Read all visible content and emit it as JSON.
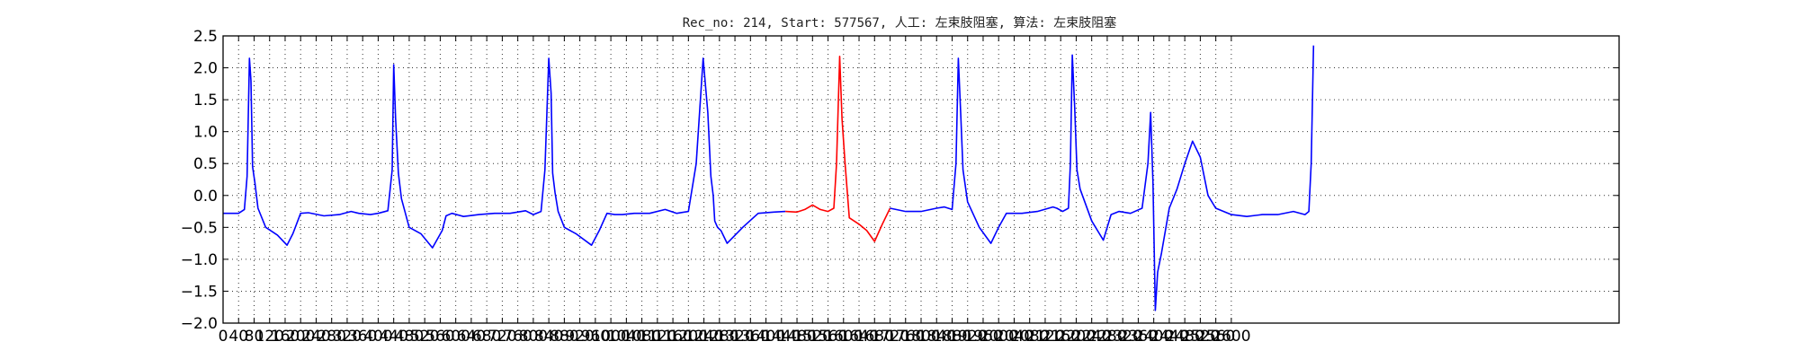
{
  "chart_data": {
    "type": "line",
    "title": "Rec_no: 214, Start: 577567, 人工: 左束肢阻塞, 算法: 左束肢阻塞",
    "xlabel": "",
    "ylabel": "",
    "xlim": [
      0,
      3600
    ],
    "ylim": [
      -2.0,
      2.5
    ],
    "grid": true,
    "ytick_labels": [
      "2.5",
      "2.0",
      "1.5",
      "1.0",
      "0.5",
      "0.0",
      "−0.5",
      "−1.0",
      "−1.5",
      "−2.0"
    ],
    "yticks": [
      2.5,
      2.0,
      1.5,
      1.0,
      0.5,
      0.0,
      -0.5,
      -1.0,
      -1.5,
      -2.0
    ],
    "xticks": [
      0,
      40,
      80,
      120,
      160,
      200,
      240,
      280,
      320,
      360,
      400,
      440,
      480,
      520,
      560,
      600,
      640,
      680,
      720,
      760,
      800,
      840,
      880,
      920,
      960,
      1000,
      1040,
      1080,
      1120,
      1160,
      1200,
      1240,
      1280,
      1320,
      1360,
      1400,
      1440,
      1480,
      1520,
      1560,
      1600,
      1640,
      1680,
      1720,
      1760,
      1800,
      1840,
      1880,
      1920,
      1960,
      2000,
      2040,
      2080,
      2120,
      2160,
      2200,
      2240,
      2280,
      2320,
      2360,
      2400,
      2440,
      2480,
      2520,
      2560,
      2600
    ],
    "colors": {
      "normal": "#0000ff",
      "highlight": "#ff0000"
    },
    "series": [
      {
        "color": "#0000ff",
        "x": [
          0,
          40,
          55,
          62,
          68,
          72,
          76,
          82,
          90,
          110,
          140,
          165,
          180,
          200,
          220,
          260,
          300,
          330,
          350,
          380,
          400,
          425,
          436,
          440,
          445,
          452,
          460,
          480,
          510,
          540,
          565,
          575,
          590,
          620,
          660,
          700,
          740,
          780,
          800,
          820,
          830,
          840,
          846,
          850,
          856,
          864,
          880,
          910,
          950,
          970,
          990,
          1010,
          1030,
          1060,
          1100,
          1140,
          1170,
          1200,
          1220,
          1238,
          1250,
          1258,
          1264,
          1268,
          1275,
          1284,
          1300,
          1340,
          1380,
          1420,
          1450
        ],
        "y": [
          -0.28,
          -0.28,
          -0.22,
          0.3,
          2.15,
          1.8,
          0.45,
          0.2,
          -0.2,
          -0.5,
          -0.62,
          -0.78,
          -0.6,
          -0.28,
          -0.27,
          -0.32,
          -0.3,
          -0.25,
          -0.28,
          -0.3,
          -0.28,
          -0.24,
          0.4,
          2.05,
          1.2,
          0.35,
          -0.05,
          -0.5,
          -0.6,
          -0.82,
          -0.55,
          -0.32,
          -0.28,
          -0.33,
          -0.3,
          -0.28,
          -0.28,
          -0.24,
          -0.3,
          -0.25,
          0.4,
          2.15,
          1.6,
          0.35,
          0.05,
          -0.25,
          -0.5,
          -0.6,
          -0.78,
          -0.55,
          -0.28,
          -0.3,
          -0.3,
          -0.28,
          -0.28,
          -0.22,
          -0.28,
          -0.25,
          0.5,
          2.15,
          1.3,
          0.3,
          0.0,
          -0.4,
          -0.5,
          -0.55,
          -0.75,
          -0.5,
          -0.28,
          -0.26,
          -0.25
        ]
      },
      {
        "color": "#ff0000",
        "x": [
          1450,
          1480,
          1500,
          1520,
          1540,
          1560,
          1575,
          1582,
          1590,
          1596,
          1604,
          1615,
          1640,
          1660,
          1680,
          1700,
          1720
        ],
        "y": [
          -0.25,
          -0.26,
          -0.22,
          -0.15,
          -0.22,
          -0.25,
          -0.2,
          0.5,
          2.18,
          1.2,
          0.5,
          -0.35,
          -0.45,
          -0.55,
          -0.72,
          -0.45,
          -0.2
        ]
      },
      {
        "color": "#0000ff",
        "x": [
          1720,
          1760,
          1800,
          1840,
          1860,
          1880,
          1890,
          1896,
          1902,
          1908,
          1920,
          1950,
          1980,
          2000,
          2020,
          2060,
          2100,
          2140,
          2150,
          2165,
          2180,
          2185,
          2190,
          2196,
          2202,
          2210,
          2240,
          2270,
          2290,
          2310,
          2340,
          2370,
          2385,
          2392,
          2398,
          2404,
          2410,
          2420,
          2440,
          2460,
          2480,
          2500,
          2520,
          2540,
          2560,
          2600,
          2640,
          2680,
          2720,
          2760,
          2790,
          2800,
          2806,
          2812
        ],
        "y": [
          -0.2,
          -0.25,
          -0.25,
          -0.2,
          -0.18,
          -0.22,
          0.5,
          2.15,
          1.3,
          0.4,
          -0.1,
          -0.5,
          -0.75,
          -0.5,
          -0.28,
          -0.28,
          -0.25,
          -0.18,
          -0.2,
          -0.25,
          -0.2,
          0.5,
          2.2,
          1.4,
          0.4,
          0.1,
          -0.4,
          -0.7,
          -0.3,
          -0.25,
          -0.28,
          -0.2,
          0.5,
          1.3,
          0.2,
          -1.8,
          -1.2,
          -0.9,
          -0.2,
          0.1,
          0.5,
          0.85,
          0.6,
          0.0,
          -0.2,
          -0.3,
          -0.33,
          -0.3,
          -0.3,
          -0.25,
          -0.3,
          -0.25,
          0.5,
          2.35
        ]
      }
    ]
  }
}
